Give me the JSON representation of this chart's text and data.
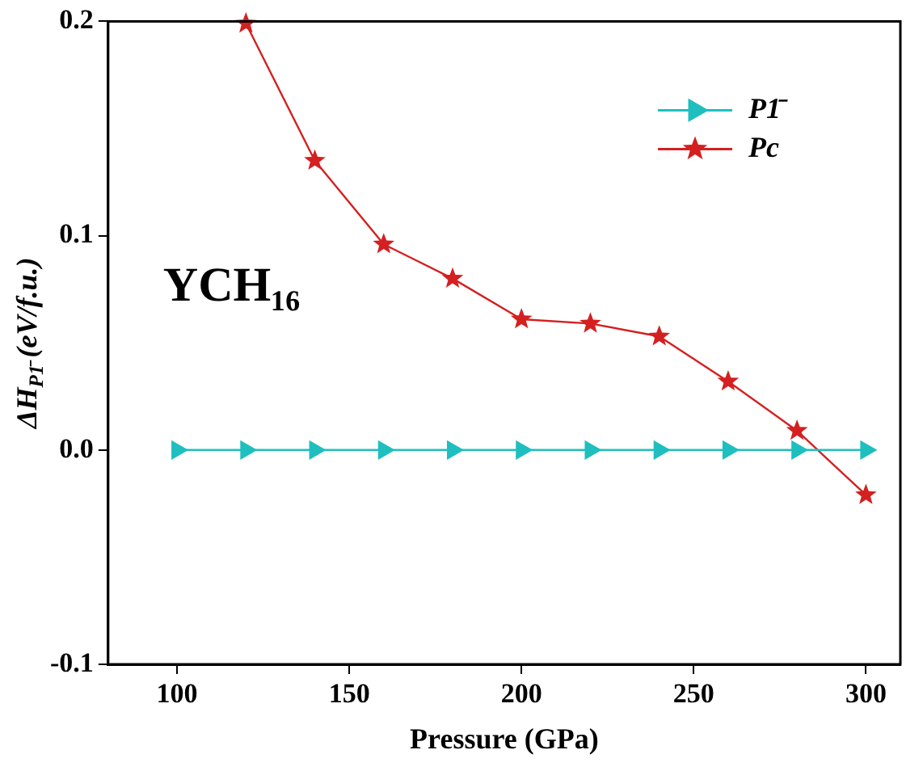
{
  "chart_data": {
    "type": "line",
    "xlabel": "Pressure (GPa)",
    "ylabel": "ΔH$_{P1̄}$ (eV/f.u.)",
    "annotations": [
      "YCH₁₆"
    ],
    "xlim": [
      80,
      310
    ],
    "xticks": [
      100,
      150,
      200,
      250,
      300
    ],
    "ylim": [
      -0.1,
      0.2
    ],
    "yticks": [
      {
        "value": -0.1,
        "label": "-0.1"
      },
      {
        "value": 0,
        "label": "0.0"
      },
      0.1,
      0.2
    ],
    "grid": false,
    "legend": "top right",
    "line_style": "solid",
    "series": [
      {
        "name": "P1̄",
        "color": "#1fbfbf",
        "marker": "triangle",
        "x": [
          100,
          120,
          140,
          160,
          180,
          200,
          220,
          240,
          260,
          280,
          300
        ],
        "values": [
          0,
          0,
          0,
          0,
          0,
          0,
          0,
          0,
          0,
          0,
          0
        ]
      },
      {
        "name": "Pc",
        "color": "#d42020",
        "marker": "star",
        "x": [
          120,
          140,
          160,
          180,
          200,
          220,
          240,
          260,
          280,
          300
        ],
        "values": [
          0.199,
          0.135,
          0.096,
          0.08,
          0.061,
          0.059,
          0.053,
          0.032,
          0.009,
          -0.021
        ]
      }
    ]
  }
}
